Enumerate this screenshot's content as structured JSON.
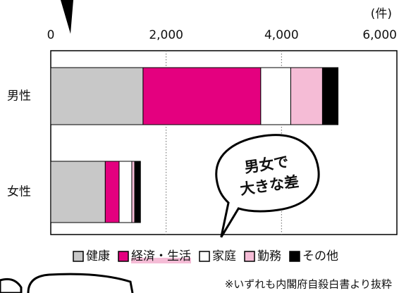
{
  "chart_data": {
    "type": "stacked-bar-horizontal",
    "unit_label": "(件)",
    "categories": [
      "男性",
      "女性"
    ],
    "series": [
      {
        "name": "健康",
        "color": "#c8c8c8",
        "values": [
          1600,
          945
        ]
      },
      {
        "name": "経済・生活",
        "color": "#e4007f",
        "values": [
          2040,
          240
        ]
      },
      {
        "name": "家庭",
        "color": "#ffffff",
        "values": [
          520,
          220
        ]
      },
      {
        "name": "勤務",
        "color": "#f5bcd6",
        "values": [
          550,
          50
        ]
      },
      {
        "name": "その他",
        "color": "#000000",
        "values": [
          270,
          100
        ]
      }
    ],
    "xlim": [
      0,
      6000
    ],
    "xticks": [
      0,
      {
        "value": 2000,
        "label": "2,000"
      },
      {
        "value": 4000,
        "label": "4,000"
      },
      {
        "value": 6000,
        "label": "6,000"
      }
    ],
    "grid": true,
    "annotations": [
      "男女で",
      "大きな差"
    ],
    "source_note": "※いずれも内閣府自殺白書より抜粋"
  }
}
